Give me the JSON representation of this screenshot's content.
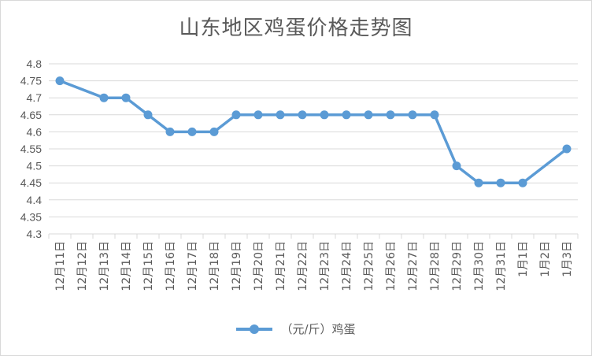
{
  "chart_data": {
    "type": "line",
    "title": "山东地区鸡蛋价格走势图",
    "categories": [
      "12月11日",
      "12月12日",
      "12月13日",
      "12月14日",
      "12月15日",
      "12月16日",
      "12月17日",
      "12月18日",
      "12月19日",
      "12月20日",
      "12月21日",
      "12月22日",
      "12月23日",
      "12月24日",
      "12月25日",
      "12月26日",
      "12月27日",
      "12月28日",
      "12月29日",
      "12月30日",
      "12月31日",
      "1月1日",
      "1月2日",
      "1月3日"
    ],
    "series": [
      {
        "name": "（元/斤）鸡蛋",
        "color": "#5b9bd5",
        "values": [
          4.75,
          null,
          4.7,
          4.7,
          4.65,
          4.6,
          4.6,
          4.6,
          4.65,
          4.65,
          4.65,
          4.65,
          4.65,
          4.65,
          4.65,
          4.65,
          4.65,
          4.65,
          4.5,
          4.45,
          4.45,
          4.45,
          null,
          4.55
        ]
      }
    ],
    "yticks": [
      "4.3",
      "4.35",
      "4.4",
      "4.45",
      "4.5",
      "4.55",
      "4.6",
      "4.65",
      "4.7",
      "4.75",
      "4.8"
    ],
    "ylim": [
      4.3,
      4.8
    ],
    "grid": true,
    "legend_position": "bottom",
    "gridline_color": "#d9d9d9"
  }
}
